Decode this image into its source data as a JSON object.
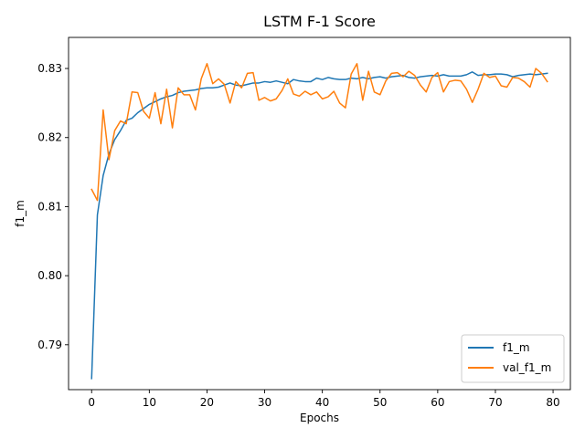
{
  "chart_data": {
    "type": "line",
    "title": "LSTM F-1 Score",
    "xlabel": "Epochs",
    "ylabel": "f1_m",
    "xlim": [
      -4,
      83
    ],
    "ylim": [
      0.7835,
      0.8345
    ],
    "xticks": [
      0,
      10,
      20,
      30,
      40,
      50,
      60,
      70,
      80
    ],
    "yticks": [
      0.79,
      0.8,
      0.81,
      0.82,
      0.83
    ],
    "ytick_labels": [
      "0.79",
      "0.80",
      "0.81",
      "0.82",
      "0.83"
    ],
    "grid": false,
    "legend_position": "lower-right",
    "x": [
      0,
      1,
      2,
      3,
      4,
      5,
      6,
      7,
      8,
      9,
      10,
      11,
      12,
      13,
      14,
      15,
      16,
      17,
      18,
      19,
      20,
      21,
      22,
      23,
      24,
      25,
      26,
      27,
      28,
      29,
      30,
      31,
      32,
      33,
      34,
      35,
      36,
      37,
      38,
      39,
      40,
      41,
      42,
      43,
      44,
      45,
      46,
      47,
      48,
      49,
      50,
      51,
      52,
      53,
      54,
      55,
      56,
      57,
      58,
      59,
      60,
      61,
      62,
      63,
      64,
      65,
      66,
      67,
      68,
      69,
      70,
      71,
      72,
      73,
      74,
      75,
      76,
      77,
      78,
      79
    ],
    "series": [
      {
        "name": "f1_m",
        "color": "#1f77b4",
        "values": [
          0.7851,
          0.8088,
          0.8145,
          0.8176,
          0.8197,
          0.821,
          0.8225,
          0.8228,
          0.8236,
          0.8242,
          0.8248,
          0.8252,
          0.8256,
          0.8259,
          0.8261,
          0.8265,
          0.8267,
          0.8268,
          0.8269,
          0.8271,
          0.8272,
          0.8272,
          0.8273,
          0.8276,
          0.8279,
          0.8276,
          0.8275,
          0.8277,
          0.8279,
          0.8279,
          0.8281,
          0.828,
          0.8282,
          0.828,
          0.8278,
          0.8284,
          0.8282,
          0.8281,
          0.8281,
          0.8286,
          0.8284,
          0.8287,
          0.8285,
          0.8284,
          0.8284,
          0.8286,
          0.8285,
          0.8287,
          0.8285,
          0.8287,
          0.8288,
          0.8286,
          0.8288,
          0.8289,
          0.829,
          0.8287,
          0.8286,
          0.8288,
          0.8289,
          0.829,
          0.8289,
          0.8291,
          0.8289,
          0.8289,
          0.8289,
          0.8291,
          0.8295,
          0.829,
          0.8291,
          0.8291,
          0.8292,
          0.8292,
          0.8291,
          0.8288,
          0.829,
          0.8291,
          0.8292,
          0.8291,
          0.8292,
          0.8293
        ]
      },
      {
        "name": "val_f1_m",
        "color": "#ff7f0e",
        "values": [
          0.8125,
          0.8109,
          0.824,
          0.8168,
          0.821,
          0.8224,
          0.822,
          0.8266,
          0.8265,
          0.8238,
          0.8228,
          0.8265,
          0.822,
          0.827,
          0.8214,
          0.8272,
          0.8262,
          0.8262,
          0.824,
          0.8285,
          0.8307,
          0.8278,
          0.8285,
          0.8277,
          0.825,
          0.8281,
          0.8272,
          0.8293,
          0.8294,
          0.8254,
          0.8258,
          0.8253,
          0.8256,
          0.8268,
          0.8285,
          0.8263,
          0.826,
          0.8267,
          0.8262,
          0.8266,
          0.8256,
          0.8259,
          0.8267,
          0.825,
          0.8243,
          0.8292,
          0.8307,
          0.8254,
          0.8296,
          0.8266,
          0.8262,
          0.8282,
          0.8293,
          0.8294,
          0.8288,
          0.8296,
          0.829,
          0.8276,
          0.8266,
          0.8287,
          0.8294,
          0.8266,
          0.8281,
          0.8283,
          0.8282,
          0.827,
          0.8251,
          0.827,
          0.8293,
          0.8287,
          0.8289,
          0.8275,
          0.8273,
          0.8287,
          0.8286,
          0.8281,
          0.8273,
          0.83,
          0.8293,
          0.8281
        ]
      }
    ]
  }
}
